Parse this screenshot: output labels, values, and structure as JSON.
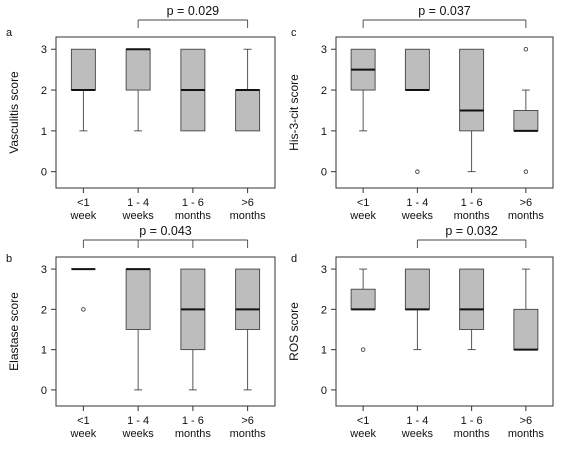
{
  "chart_data": [
    {
      "panel": "a",
      "type": "box",
      "ylabel": "Vasculitis score",
      "categories": [
        [
          "<1",
          "week"
        ],
        [
          "1 - 4",
          "weeks"
        ],
        [
          "1 - 6",
          "months"
        ],
        [
          ">6",
          "months"
        ]
      ],
      "yticks": [
        0,
        1,
        2,
        3
      ],
      "ylim": [
        -0.4,
        3.3
      ],
      "boxes": [
        {
          "min": 1,
          "q1": 2,
          "median": 2,
          "q3": 3,
          "max": 3,
          "outliers": []
        },
        {
          "min": 1,
          "q1": 2,
          "median": 3,
          "q3": 3,
          "max": 3,
          "outliers": []
        },
        {
          "min": 1,
          "q1": 1,
          "median": 2,
          "q3": 3,
          "max": 3,
          "outliers": []
        },
        {
          "min": 1,
          "q1": 1,
          "median": 2,
          "q3": 2,
          "max": 3,
          "outliers": []
        }
      ],
      "comparisons": [
        {
          "label": "p = 0.029",
          "from": 1,
          "to": 3
        }
      ]
    },
    {
      "panel": "c",
      "type": "box",
      "ylabel": "His-3-cit score",
      "categories": [
        [
          "<1",
          "week"
        ],
        [
          "1 - 4",
          "weeks"
        ],
        [
          "1 - 6",
          "months"
        ],
        [
          ">6",
          "months"
        ]
      ],
      "yticks": [
        0,
        1,
        2,
        3
      ],
      "ylim": [
        -0.4,
        3.3
      ],
      "boxes": [
        {
          "min": 1,
          "q1": 2,
          "median": 2.5,
          "q3": 3,
          "max": 3,
          "outliers": []
        },
        {
          "min": 2,
          "q1": 2,
          "median": 2,
          "q3": 3,
          "max": 3,
          "outliers": [
            0
          ]
        },
        {
          "min": 0,
          "q1": 1,
          "median": 1.5,
          "q3": 3,
          "max": 3,
          "outliers": []
        },
        {
          "min": 1,
          "q1": 1,
          "median": 1,
          "q3": 1.5,
          "max": 2,
          "outliers": [
            3,
            0
          ]
        }
      ],
      "comparisons": [
        {
          "label": "p = 0.037",
          "from": 0,
          "to": 3
        }
      ]
    },
    {
      "panel": "b",
      "type": "box",
      "ylabel": "Elastase score",
      "categories": [
        [
          "<1",
          "week"
        ],
        [
          "1 - 4",
          "weeks"
        ],
        [
          "1 - 6",
          "months"
        ],
        [
          ">6",
          "months"
        ]
      ],
      "yticks": [
        0,
        1,
        2,
        3
      ],
      "ylim": [
        -0.4,
        3.3
      ],
      "boxes": [
        {
          "min": 3,
          "q1": 3,
          "median": 3,
          "q3": 3,
          "max": 3,
          "outliers": [
            2
          ]
        },
        {
          "min": 0,
          "q1": 1.5,
          "median": 3,
          "q3": 3,
          "max": 3,
          "outliers": []
        },
        {
          "min": 0,
          "q1": 1,
          "median": 2,
          "q3": 3,
          "max": 3,
          "outliers": []
        },
        {
          "min": 0,
          "q1": 1.5,
          "median": 2,
          "q3": 3,
          "max": 3,
          "outliers": []
        }
      ],
      "comparisons": [
        {
          "label": "p = 0.043",
          "from": 0,
          "to": [
            1,
            2,
            3
          ]
        }
      ]
    },
    {
      "panel": "d",
      "type": "box",
      "ylabel": "ROS score",
      "categories": [
        [
          "<1",
          "week"
        ],
        [
          "1 - 4",
          "weeks"
        ],
        [
          "1 - 6",
          "months"
        ],
        [
          ">6",
          "months"
        ]
      ],
      "yticks": [
        0,
        1,
        2,
        3
      ],
      "ylim": [
        -0.4,
        3.3
      ],
      "boxes": [
        {
          "min": 2,
          "q1": 2,
          "median": 2,
          "q3": 2.5,
          "max": 3,
          "outliers": [
            1
          ]
        },
        {
          "min": 1,
          "q1": 2,
          "median": 2,
          "q3": 3,
          "max": 3,
          "outliers": []
        },
        {
          "min": 1,
          "q1": 1.5,
          "median": 2,
          "q3": 3,
          "max": 3,
          "outliers": []
        },
        {
          "min": 1,
          "q1": 1,
          "median": 1,
          "q3": 2,
          "max": 3,
          "outliers": []
        }
      ],
      "comparisons": [
        {
          "label": "p = 0.032",
          "from": 1,
          "to": 3
        }
      ]
    }
  ]
}
